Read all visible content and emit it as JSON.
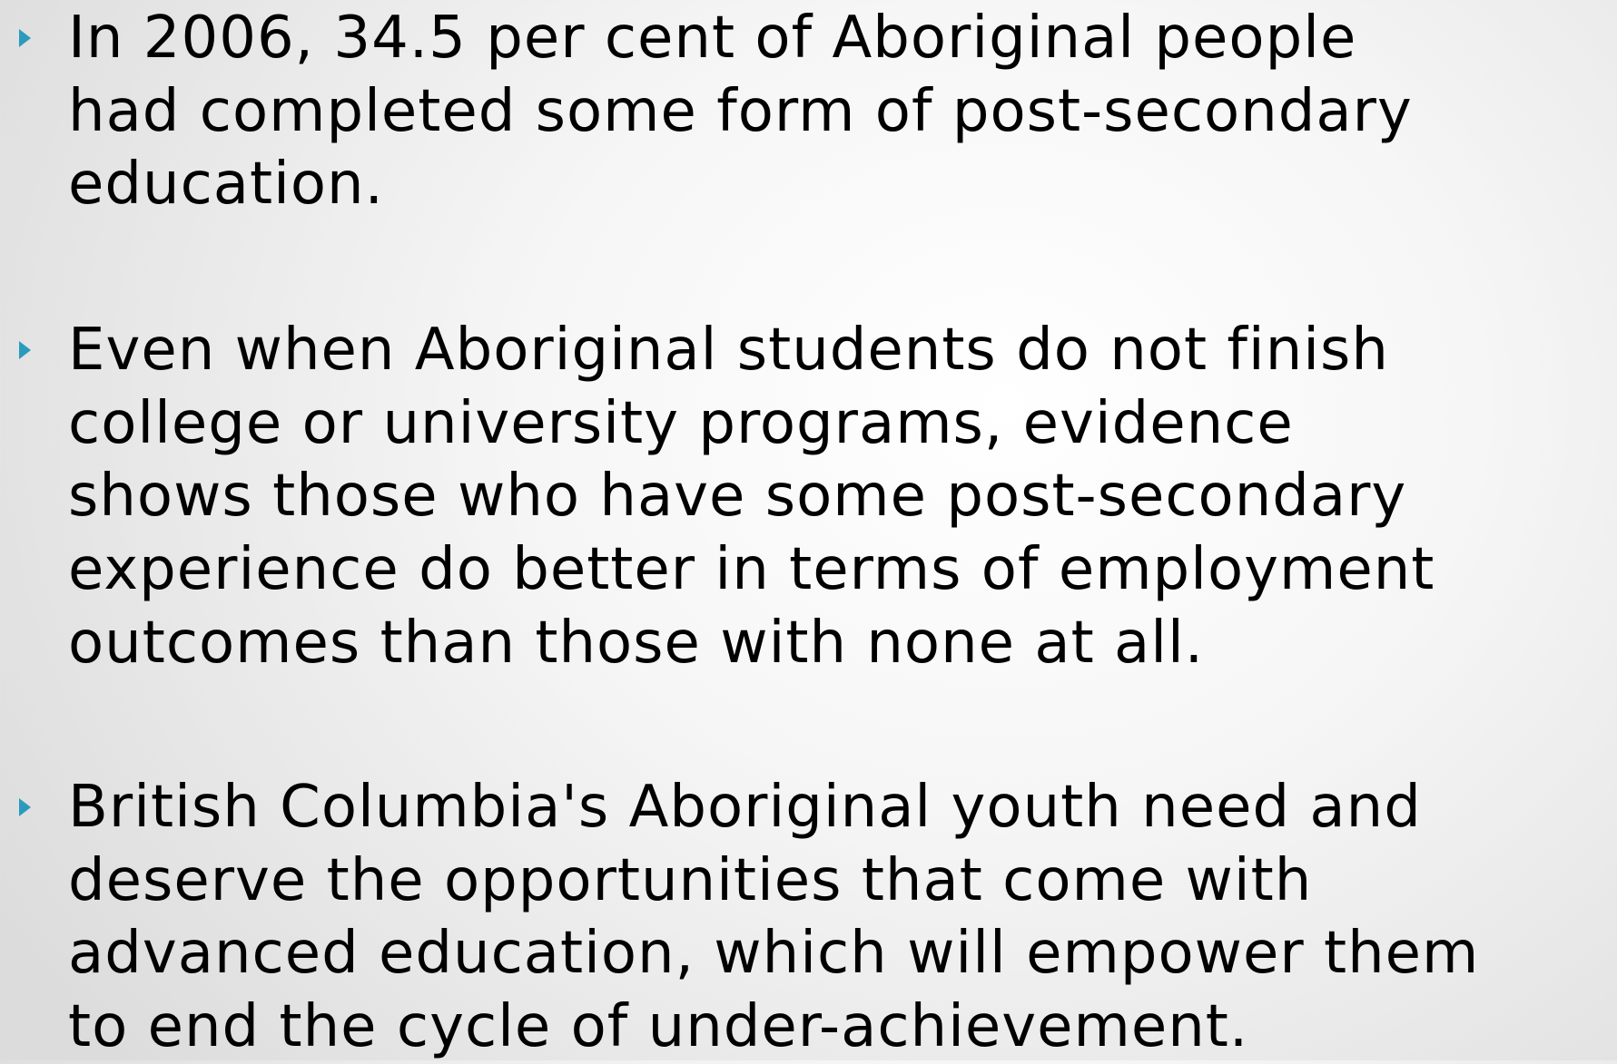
{
  "bullets": [
    {
      "lines": [
        "In 2006, 34.5 per cent of Aboriginal people",
        "had completed some form of post-secondary",
        "education."
      ]
    },
    {
      "lines": [
        "Even when Aboriginal students do not finish",
        "college or university programs, evidence",
        "shows those who have some post-secondary",
        "experience do better in terms of employment",
        "outcomes than those with none at all."
      ]
    },
    {
      "lines": [
        "British Columbia's Aboriginal youth need and",
        "deserve the opportunities that come with",
        "advanced education, which will empower them",
        "to end the cycle of under-achievement."
      ]
    }
  ]
}
